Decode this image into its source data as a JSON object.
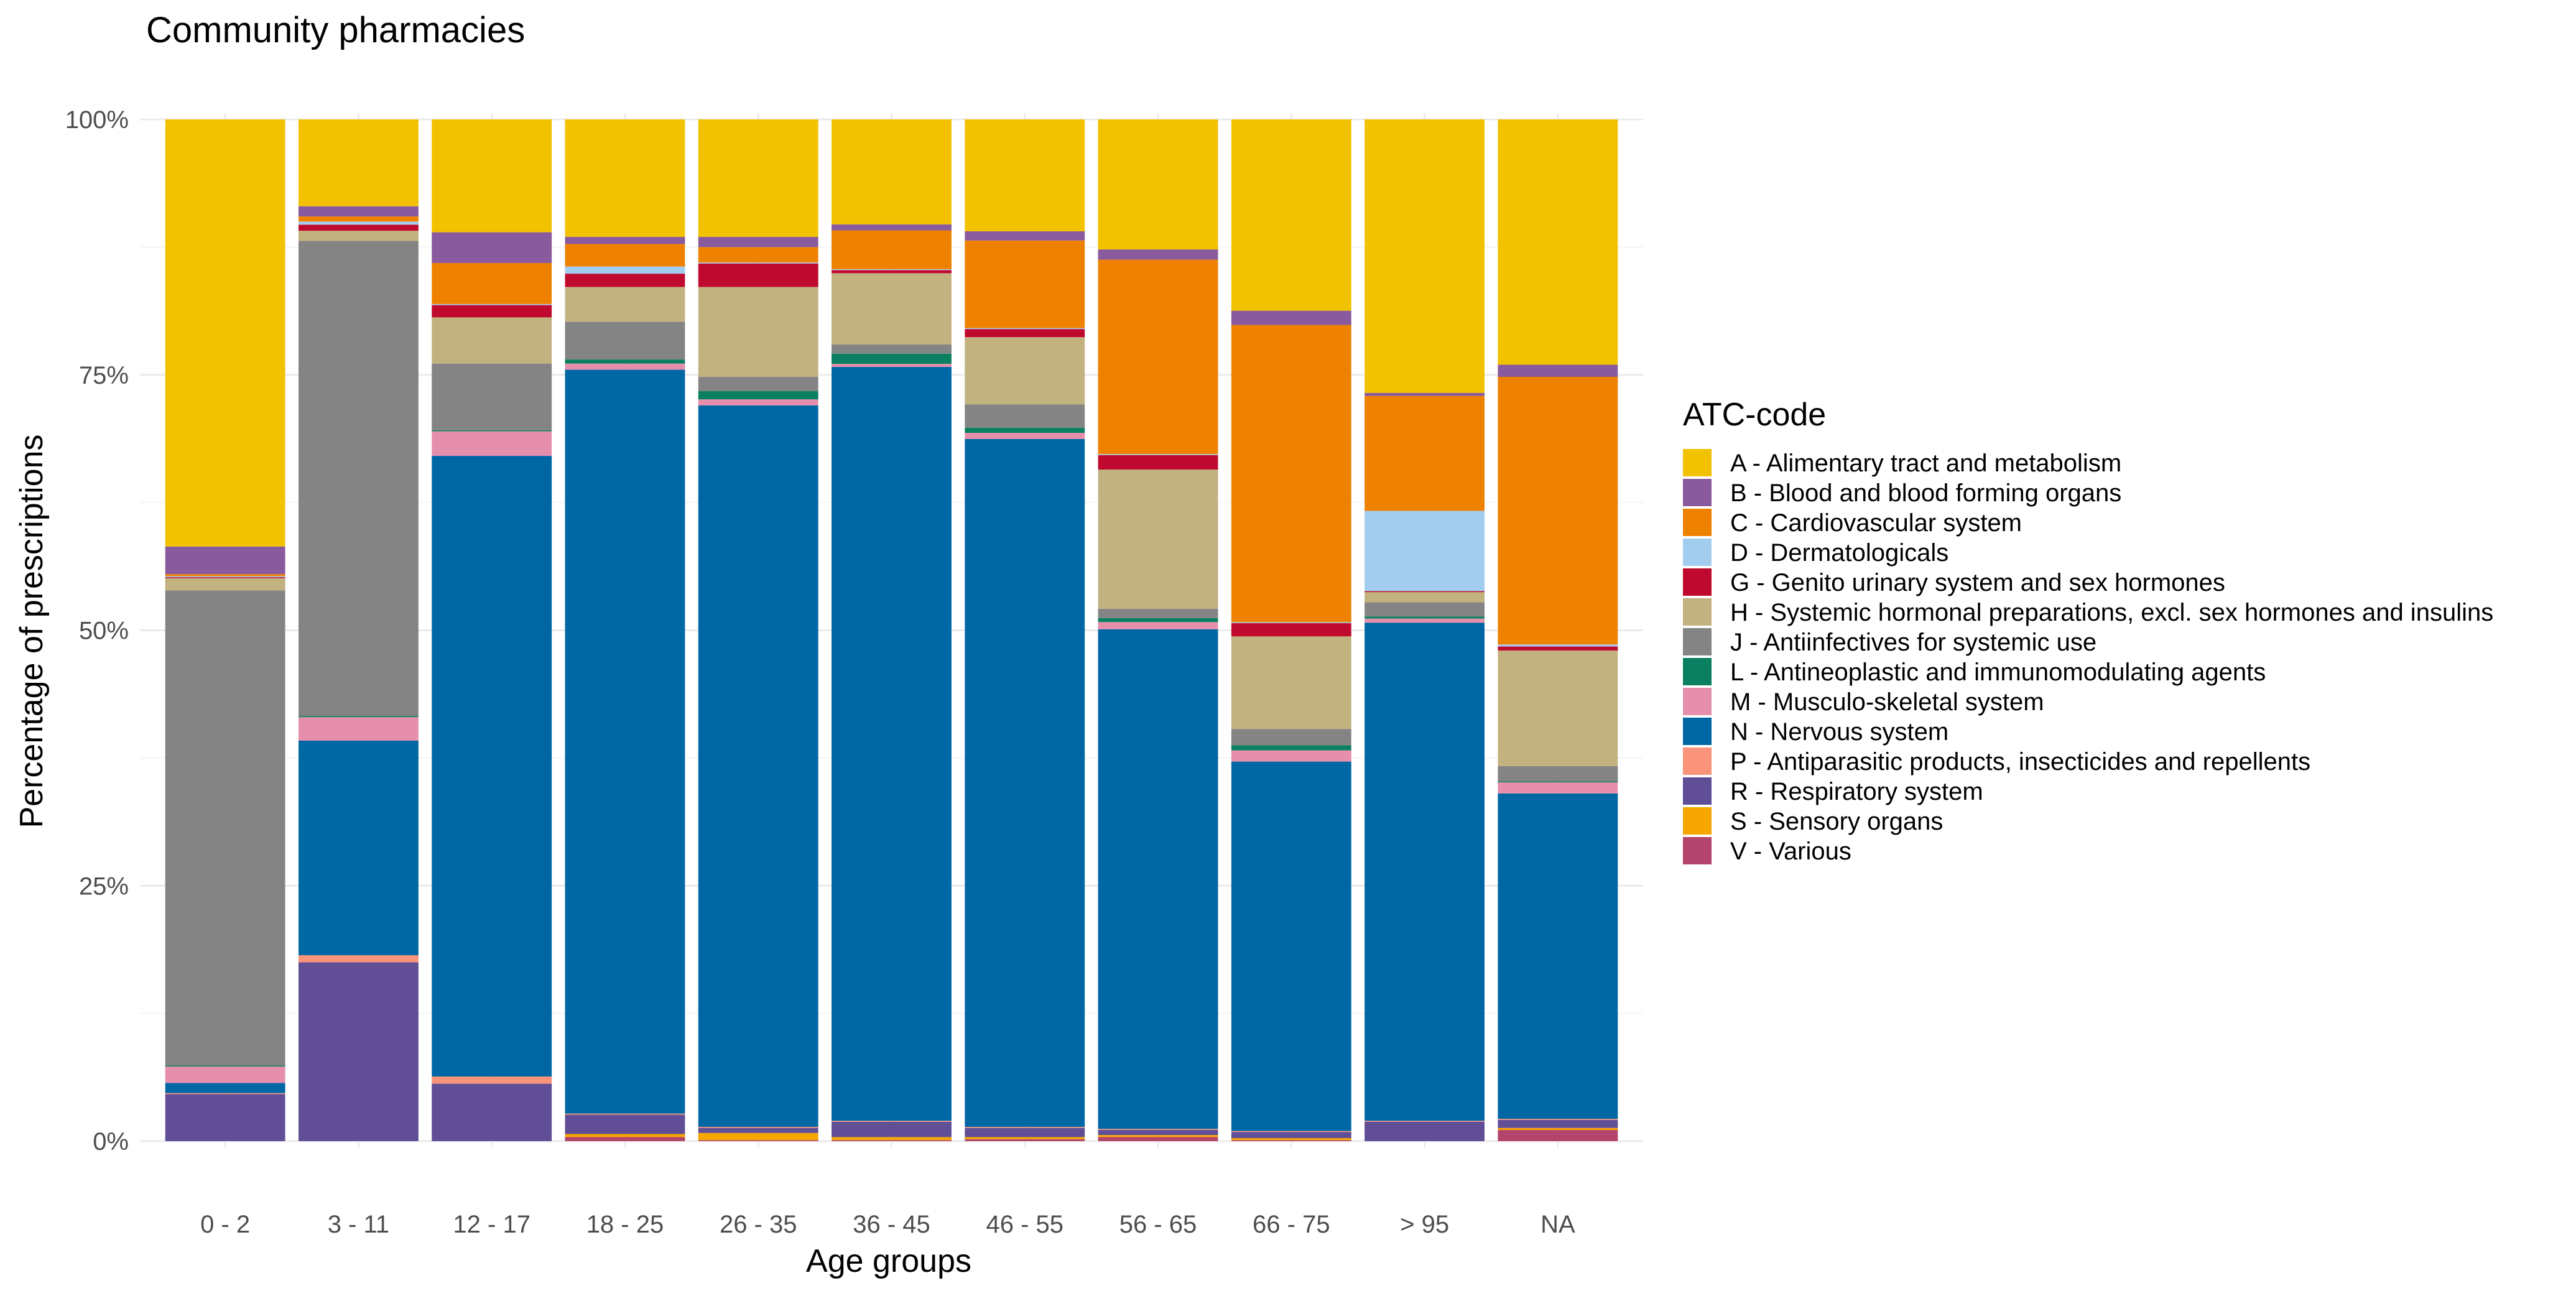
{
  "chart_data": {
    "type": "bar",
    "stacked": true,
    "title": "Community pharmacies",
    "xlabel": "Age groups",
    "ylabel": "Percentage of prescriptions",
    "ylim": [
      0,
      100
    ],
    "yticks": [
      "0%",
      "25%",
      "50%",
      "75%",
      "100%"
    ],
    "ytick_values": [
      0,
      25,
      50,
      75,
      100
    ],
    "grid": true,
    "legend_title": "ATC-code",
    "legend_position": "right",
    "categories": [
      "0 - 2",
      "3 - 11",
      "12 - 17",
      "18 - 25",
      "26 - 35",
      "36 - 45",
      "46 - 55",
      "56 - 65",
      "66 - 75",
      "> 95",
      "NA"
    ],
    "stack_order_bottom_to_top": [
      "V",
      "S",
      "R",
      "P",
      "N",
      "M",
      "L",
      "J",
      "H",
      "G",
      "D",
      "C",
      "B",
      "A"
    ],
    "series": [
      {
        "code": "A",
        "name": "A - Alimentary tract and metabolism",
        "color": "#F2C200",
        "values": [
          41.8,
          8.5,
          11.0,
          11.5,
          11.5,
          10.3,
          11.0,
          12.7,
          18.8,
          26.9,
          24.2
        ]
      },
      {
        "code": "B",
        "name": "B - Blood and blood forming organs",
        "color": "#8A5A9E",
        "values": [
          2.7,
          1.0,
          3.0,
          0.7,
          1.0,
          0.6,
          0.9,
          1.0,
          1.4,
          0.3,
          1.2
        ]
      },
      {
        "code": "C",
        "name": "C - Cardiovascular system",
        "color": "#EE8200",
        "values": [
          0.2,
          0.5,
          4.0,
          2.2,
          1.5,
          3.8,
          8.6,
          19.0,
          29.2,
          11.3,
          26.4
        ]
      },
      {
        "code": "D",
        "name": "D - Dermatologicals",
        "color": "#A3CDEF",
        "values": [
          0.1,
          0.3,
          0.1,
          0.7,
          0.1,
          0.1,
          0.1,
          0.1,
          0.1,
          7.9,
          0.2
        ]
      },
      {
        "code": "G",
        "name": "G - Genito urinary system and sex hormones",
        "color": "#C0092E",
        "values": [
          0.1,
          0.6,
          1.2,
          1.3,
          2.3,
          0.3,
          0.8,
          1.4,
          1.3,
          0.1,
          0.4
        ]
      },
      {
        "code": "H",
        "name": "H - Systemic hormonal preparations, excl. sex hormones and insulins",
        "color": "#C2B280",
        "values": [
          1.2,
          1.0,
          4.5,
          3.4,
          8.8,
          7.0,
          6.6,
          13.6,
          9.1,
          1.0,
          11.4
        ]
      },
      {
        "code": "J",
        "name": "J - Antiinfectives for systemic use",
        "color": "#848484",
        "values": [
          46.5,
          46.5,
          6.5,
          3.7,
          1.4,
          0.9,
          2.3,
          0.9,
          1.6,
          1.4,
          1.5
        ]
      },
      {
        "code": "L",
        "name": "L - Antineoplastic and immunomodulating agents",
        "color": "#0A8060",
        "values": [
          0.1,
          0.1,
          0.1,
          0.4,
          0.8,
          1.0,
          0.5,
          0.4,
          0.5,
          0.2,
          0.1
        ]
      },
      {
        "code": "M",
        "name": "M - Musculo-skeletal system",
        "color": "#E68FAC",
        "values": [
          1.6,
          2.3,
          2.4,
          0.6,
          0.6,
          0.3,
          0.6,
          0.7,
          1.1,
          0.4,
          1.1
        ]
      },
      {
        "code": "N",
        "name": "N - Nervous system",
        "color": "#0067A5",
        "values": [
          1.0,
          21.0,
          60.5,
          72.8,
          70.6,
          74.0,
          67.6,
          48.8,
          36.3,
          49.0,
          32.1
        ]
      },
      {
        "code": "P",
        "name": "P - Antiparasitic products, insecticides and repellents",
        "color": "#F99379",
        "values": [
          0.1,
          0.7,
          0.7,
          0.1,
          0.1,
          0.1,
          0.1,
          0.1,
          0.1,
          0.1,
          0.1
        ]
      },
      {
        "code": "R",
        "name": "R - Respiratory system",
        "color": "#604E97",
        "values": [
          4.6,
          17.5,
          5.6,
          1.9,
          0.5,
          1.5,
          0.9,
          0.5,
          0.6,
          1.9,
          0.8
        ]
      },
      {
        "code": "S",
        "name": "S - Sensory organs",
        "color": "#F6A600",
        "values": [
          0.0,
          0.0,
          0.0,
          0.3,
          0.7,
          0.3,
          0.2,
          0.2,
          0.2,
          0.0,
          0.2
        ]
      },
      {
        "code": "V",
        "name": "V - Various",
        "color": "#B3446C",
        "values": [
          0.0,
          0.0,
          0.0,
          0.4,
          0.1,
          0.1,
          0.2,
          0.4,
          0.1,
          0.0,
          1.1
        ]
      }
    ]
  }
}
